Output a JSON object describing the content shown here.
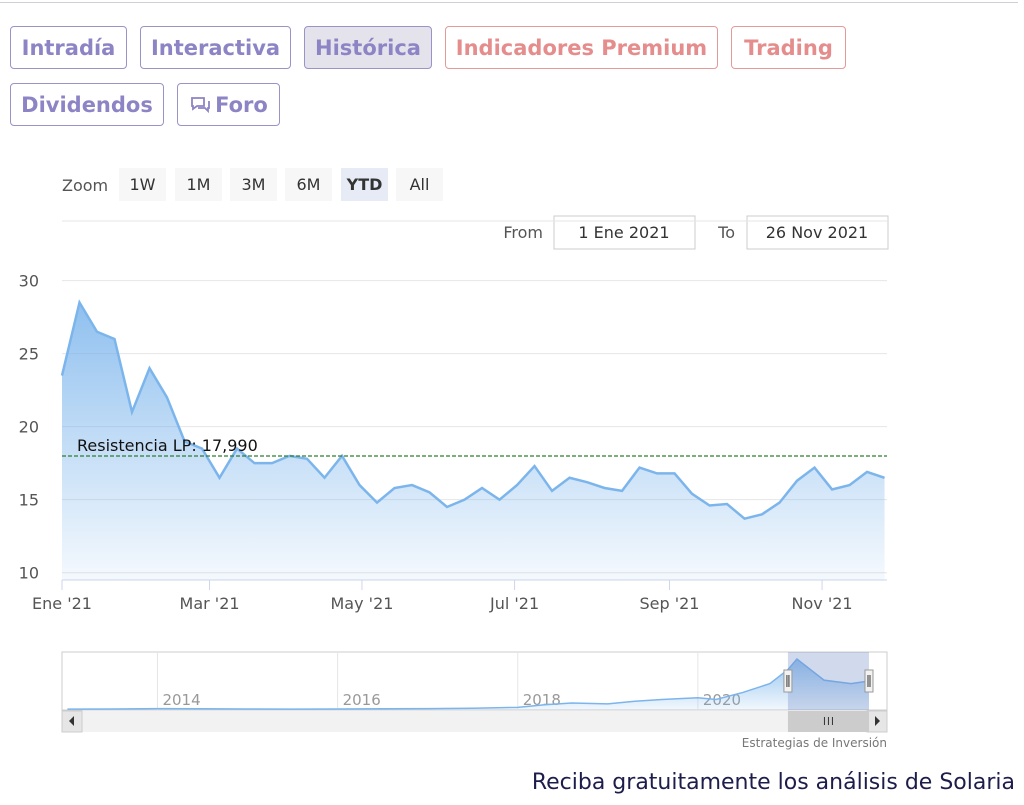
{
  "tabs": [
    "Intradía",
    "Interactiva",
    "Histórica",
    "Indicadores Premium",
    "Trading",
    "Dividendos",
    "Foro"
  ],
  "zoom": {
    "label": "Zoom",
    "buttons": [
      "1W",
      "1M",
      "3M",
      "6M",
      "YTD",
      "All"
    ],
    "selected": 4
  },
  "range": {
    "from_label": "From",
    "from": "1 Ene 2021",
    "to_label": "To",
    "to": "26 Nov 2021"
  },
  "chart_data": {
    "type": "area",
    "series": [
      {
        "color": "#7cb5ec",
        "values": [
          23.5,
          28.5,
          26.5,
          26,
          21,
          24,
          22,
          19,
          18.5,
          16.5,
          18.5,
          17.5,
          17.5,
          18,
          17.8,
          16.5,
          18,
          16,
          14.8,
          15.8,
          16,
          15.5,
          14.5,
          15,
          15.8,
          15,
          16,
          17.3,
          15.6,
          16.5,
          16.2,
          15.8,
          15.6,
          17.2,
          16.8,
          16.8,
          15.4,
          14.6,
          14.7,
          13.7,
          14,
          14.8,
          16.3,
          17.2,
          15.7,
          16,
          16.9,
          16.5
        ]
      }
    ],
    "xlim": [
      0,
      47.14
    ],
    "xticks": [
      {
        "value": 0,
        "label": "Ene '21"
      },
      {
        "value": 8.43,
        "label": "Mar '21"
      },
      {
        "value": 17.14,
        "label": "May '21"
      },
      {
        "value": 25.86,
        "label": "Jul '21"
      },
      {
        "value": 34.71,
        "label": "Sep '21"
      },
      {
        "value": 43.43,
        "label": "Nov '21"
      }
    ],
    "ylim": [
      9.5,
      31
    ],
    "yticks": [
      10,
      15,
      20,
      25,
      30
    ],
    "grid": true,
    "annotations": [
      {
        "label": "Resistencia LP: 17,990",
        "value": 17.99,
        "color": "#2e7d32"
      }
    ]
  },
  "navigator": {
    "x": [
      2013,
      2013.5,
      2014,
      2014.5,
      2015,
      2015.5,
      2016,
      2016.5,
      2017,
      2017.5,
      2018,
      2018.3,
      2018.6,
      2019,
      2019.3,
      2019.6,
      2020,
      2020.2,
      2020.5,
      2020.8,
      2021,
      2021.1,
      2021.4,
      2021.7,
      2021.9
    ],
    "values": [
      0.5,
      0.6,
      0.8,
      0.7,
      0.6,
      0.5,
      0.6,
      0.7,
      0.8,
      1,
      1.5,
      3,
      4,
      3.5,
      5,
      6,
      7,
      6,
      10,
      15,
      23,
      29,
      17,
      15,
      16.5
    ],
    "xlim": [
      2012.94,
      2022.1
    ],
    "ylim": [
      0,
      33
    ],
    "xticks": [
      2014,
      2016,
      2018,
      2020
    ],
    "selected": [
      2021,
      2021.9
    ]
  },
  "credits": "Estrategias de Inversión",
  "footer": "Reciba gratuitamente los análisis de Solaria"
}
